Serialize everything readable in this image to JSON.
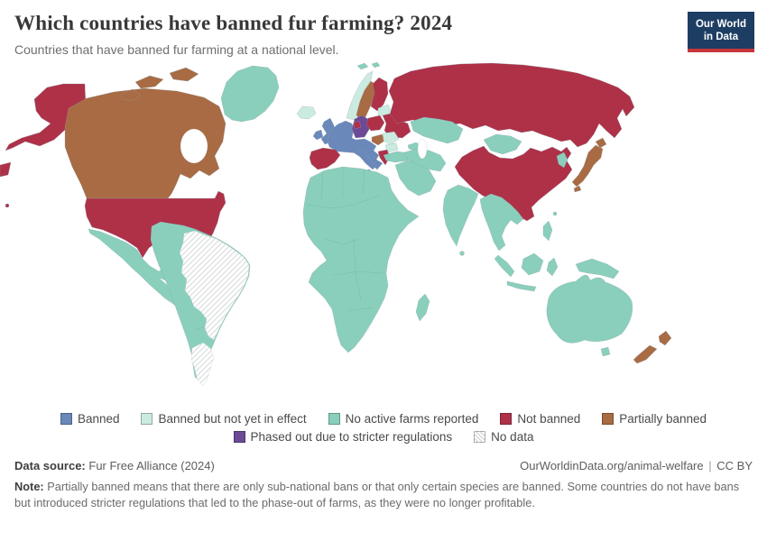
{
  "header": {
    "title": "Which countries have banned fur farming? 2024",
    "subtitle": "Countries that have banned fur farming at a national level.",
    "logo": {
      "line1": "Our World",
      "line2": "in Data"
    }
  },
  "map": {
    "colors": {
      "banned": "#6A88BA",
      "banned_pending": "#CBEBE0",
      "no_active_farms": "#89CFBC",
      "not_banned": "#AE3148",
      "partially_banned": "#A96B43",
      "phased_out": "#6C4A96",
      "no_data_hatch": "#D7DADC",
      "no_data_border": "#C8CDD0"
    },
    "countries": {
      "usa": "not_banned",
      "alaska": "not_banned",
      "hawaii": "not_banned",
      "chukotka_fragment": "not_banned",
      "canada": "partially_banned",
      "greenland": "no_active_farms",
      "mexico_central_america": "no_active_farms",
      "caribbean": "no_active_farms",
      "south_america_other": "no_active_farms",
      "brazil": "no_data",
      "argentina": "no_data",
      "iceland": "banned_pending",
      "united_kingdom": "banned",
      "ireland": "banned",
      "norway": "banned_pending",
      "sweden": "partially_banned",
      "finland": "not_banned",
      "denmark": "not_banned",
      "western_central_europe": "banned",
      "italy": "banned",
      "germany": "phased_out",
      "poland": "not_banned",
      "baltics": "banned_pending",
      "belarus_ukraine": "not_banned",
      "romania": "banned_pending",
      "bulgaria": "banned_pending",
      "hungary": "partially_banned",
      "greece": "not_banned",
      "spain_portugal": "not_banned",
      "russia": "not_banned",
      "svalbard": "no_active_farms",
      "turkey": "no_active_farms",
      "caucasus": "no_active_farms",
      "middle_east": "no_active_farms",
      "iran_region": "no_active_farms",
      "central_asia": "no_active_farms",
      "mongolia": "no_active_farms",
      "china": "not_banned",
      "india": "no_active_farms",
      "sri_lanka": "no_active_farms",
      "southeast_asia": "no_active_farms",
      "indonesia": "no_active_farms",
      "philippines": "no_active_farms",
      "korea": "no_active_farms",
      "taiwan": "no_active_farms",
      "japan": "partially_banned",
      "africa": "no_active_farms",
      "madagascar": "no_active_farms",
      "australia": "no_active_farms",
      "tasmania": "no_active_farms",
      "papua_new_guinea": "no_active_farms",
      "new_zealand": "partially_banned"
    }
  },
  "legend": {
    "rows": [
      [
        {
          "key": "banned",
          "label": "Banned"
        },
        {
          "key": "banned_pending",
          "label": "Banned but not yet in effect"
        },
        {
          "key": "no_active_farms",
          "label": "No active farms reported"
        },
        {
          "key": "not_banned",
          "label": "Not banned"
        },
        {
          "key": "partially_banned",
          "label": "Partially banned"
        }
      ],
      [
        {
          "key": "phased_out",
          "label": "Phased out due to stricter regulations"
        },
        {
          "key": "no_data",
          "label": "No data"
        }
      ]
    ]
  },
  "footer": {
    "datasource_label": "Data source:",
    "datasource": "Fur Free Alliance (2024)",
    "url": "OurWorldinData.org/animal-welfare",
    "separator": "|",
    "license": "CC BY",
    "note_label": "Note:",
    "note": "Partially banned means that there are only sub-national bans or that only certain species are banned. Some countries do not have bans but introduced stricter regulations that led to the phase-out of farms, as they were no longer profitable."
  }
}
